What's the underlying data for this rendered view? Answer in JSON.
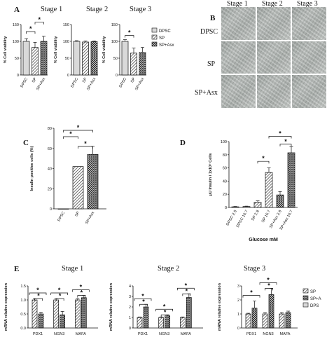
{
  "panel_letters": {
    "a": "A",
    "b": "B",
    "c": "C",
    "d": "D",
    "e": "E"
  },
  "stages": [
    "Stage 1",
    "Stage 2",
    "Stage 3"
  ],
  "panel_b": {
    "rows": [
      "DPSC",
      "SP",
      "SP+Asx"
    ],
    "columns": [
      "Stage 1",
      "Stage 2",
      "Stage 3"
    ]
  },
  "legend_a": [
    "DPSC",
    "SP",
    "SP+Asx"
  ],
  "legend_e": [
    "SP",
    "SP+A",
    "DPS"
  ],
  "colors": {
    "dpsc": "#d9d9d9",
    "sp_hatch": "#222222",
    "bg": "#ffffff"
  },
  "chart_data": [
    {
      "id": "A1",
      "type": "bar",
      "title": "Stage 1",
      "ylabel": "% Cell viability",
      "ylim": [
        0,
        150
      ],
      "yticks": [
        0,
        50,
        100,
        150
      ],
      "categories": [
        "DPSC",
        "SP",
        "SP+Asx"
      ],
      "values": [
        100,
        82,
        100
      ],
      "errors": [
        8,
        15,
        15
      ],
      "significance": [
        {
          "from": 0,
          "to": 1,
          "label": "*"
        },
        {
          "from": 1,
          "to": 2,
          "label": "*"
        }
      ]
    },
    {
      "id": "A2",
      "type": "bar",
      "title": "Stage 2",
      "ylabel": "% Cell viability",
      "ylim": [
        0,
        150
      ],
      "yticks": [
        0,
        50,
        100,
        150
      ],
      "categories": [
        "DPSC",
        "SP",
        "SP+Asx"
      ],
      "values": [
        100,
        98,
        99
      ],
      "errors": [
        2,
        3,
        2
      ],
      "significance": []
    },
    {
      "id": "A3",
      "type": "bar",
      "title": "Stage 3",
      "ylabel": "% Cell viability",
      "ylim": [
        0,
        150
      ],
      "yticks": [
        0,
        50,
        100,
        150
      ],
      "categories": [
        "DPSC",
        "SP",
        "SP+Asx"
      ],
      "values": [
        100,
        65,
        67
      ],
      "errors": [
        5,
        15,
        15
      ],
      "significance": [
        {
          "from": 0,
          "to": 1,
          "label": "*"
        }
      ]
    },
    {
      "id": "C",
      "type": "bar",
      "title": "",
      "ylabel": "Insulin positive cells (%)",
      "ylim": [
        0,
        80
      ],
      "yticks": [
        0,
        20,
        40,
        60,
        80
      ],
      "categories": [
        "DPSC",
        "SP",
        "SP+Asx"
      ],
      "values": [
        0,
        42,
        54
      ],
      "errors": [
        0,
        0,
        8
      ],
      "significance": [
        {
          "from": 0,
          "to": 2,
          "label": "*"
        },
        {
          "from": 0,
          "to": 1,
          "label": "*"
        },
        {
          "from": 1,
          "to": 2,
          "label": "*"
        }
      ]
    },
    {
      "id": "D",
      "type": "bar",
      "title": "",
      "xlabel": "Glucose mM",
      "ylabel": "μU Insulin / 1x10⁵ Cells",
      "ylim": [
        0,
        100
      ],
      "yticks": [
        0,
        20,
        40,
        60,
        80,
        100
      ],
      "categories": [
        "DPSC 2.8",
        "DPSC 16.7",
        "SP 2.8",
        "SP 16.7",
        "SP+Asx 2.8",
        "SP+Asx 16.7"
      ],
      "values": [
        1,
        1.5,
        8,
        53,
        19,
        83
      ],
      "errors": [
        0.5,
        0.5,
        2,
        7,
        5,
        9
      ],
      "significance": [
        {
          "from": 2,
          "to": 3,
          "label": "*"
        },
        {
          "from": 3,
          "to": 5,
          "label": "*"
        },
        {
          "from": 4,
          "to": 5,
          "label": "*"
        }
      ]
    },
    {
      "id": "E1",
      "type": "bar",
      "title": "Stage 1",
      "ylabel": "mRNA relative expression",
      "ylim": [
        0,
        1.5
      ],
      "yticks": [
        0.0,
        0.5,
        1.0,
        1.5
      ],
      "categories": [
        "PDX1",
        "NGN3",
        "MAFA"
      ],
      "series": [
        {
          "name": "SP",
          "values": [
            1.0,
            1.0,
            1.0
          ],
          "errors": [
            0.05,
            0.05,
            0.05
          ]
        },
        {
          "name": "SP+Asx",
          "values": [
            0.5,
            0.47,
            1.08
          ],
          "errors": [
            0.06,
            0.12,
            0.08
          ]
        }
      ],
      "significance": [
        "*",
        "*",
        "*",
        "*",
        "*"
      ]
    },
    {
      "id": "E2",
      "type": "bar",
      "title": "Stage 2",
      "ylabel": "mRNA relative expression",
      "ylim": [
        0,
        4
      ],
      "yticks": [
        0,
        1,
        2,
        3,
        4
      ],
      "categories": [
        "PDX1",
        "NGN3",
        "MAFA"
      ],
      "series": [
        {
          "name": "SP",
          "values": [
            1.0,
            1.0,
            1.0
          ],
          "errors": [
            0.05,
            0.05,
            0.05
          ]
        },
        {
          "name": "SP+Asx",
          "values": [
            2.0,
            1.15,
            2.9
          ],
          "errors": [
            0.25,
            0.1,
            0.35
          ]
        }
      ],
      "significance": [
        "*",
        "*",
        "*",
        "*",
        "*"
      ]
    },
    {
      "id": "E3",
      "type": "bar",
      "title": "Stage 3",
      "ylabel": "mRNA relative expression",
      "ylim": [
        0,
        3
      ],
      "yticks": [
        0,
        1,
        2,
        3
      ],
      "categories": [
        "PDX1",
        "NGN3",
        "MAFA"
      ],
      "series": [
        {
          "name": "SP",
          "values": [
            1.0,
            1.0,
            1.0
          ],
          "errors": [
            0.05,
            0.1,
            0.1
          ]
        },
        {
          "name": "SP+Asx",
          "values": [
            1.42,
            2.38,
            1.1
          ],
          "errors": [
            0.5,
            0.45,
            0.1
          ]
        }
      ],
      "significance": [
        "*",
        "*",
        "*",
        "*"
      ]
    }
  ]
}
